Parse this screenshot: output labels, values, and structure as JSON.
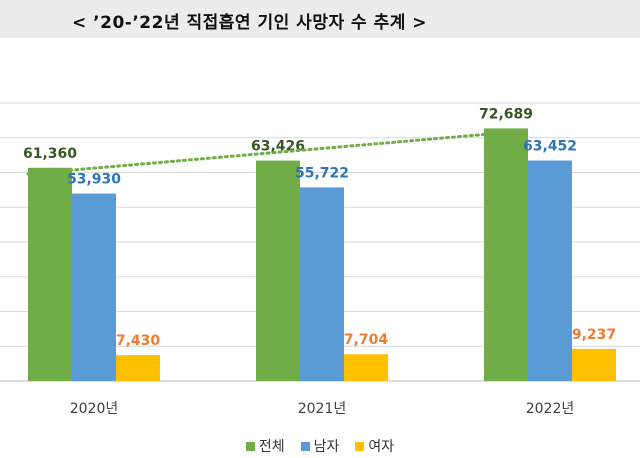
{
  "title": "< ’20-’22년 직접흡연 기인 사망자 수 추계 >",
  "colors": {
    "total": "#70ad47",
    "male": "#5b9bd5",
    "female": "#ffc000",
    "total_label": "#375623",
    "male_label": "#2e75b6",
    "female_label": "#ed7d31",
    "trend": "#70ad47"
  },
  "chart_data": {
    "type": "bar",
    "categories": [
      "2020년",
      "2021년",
      "2022년"
    ],
    "series": [
      {
        "name": "전체",
        "values": [
          61360,
          63426,
          72689
        ],
        "labels": [
          "61,360",
          "63,426",
          "72,689"
        ]
      },
      {
        "name": "남자",
        "values": [
          53930,
          55722,
          63452
        ],
        "labels": [
          "53,930",
          "55,722",
          "63,452"
        ]
      },
      {
        "name": "여자",
        "values": [
          7430,
          7704,
          9237
        ],
        "labels": [
          "7,430",
          "7,704",
          "9,237"
        ]
      }
    ],
    "trendline": {
      "series": "전체",
      "style": "dotted"
    },
    "ylim": [
      0,
      80000
    ],
    "gridlines": true,
    "legend": "bottom"
  }
}
